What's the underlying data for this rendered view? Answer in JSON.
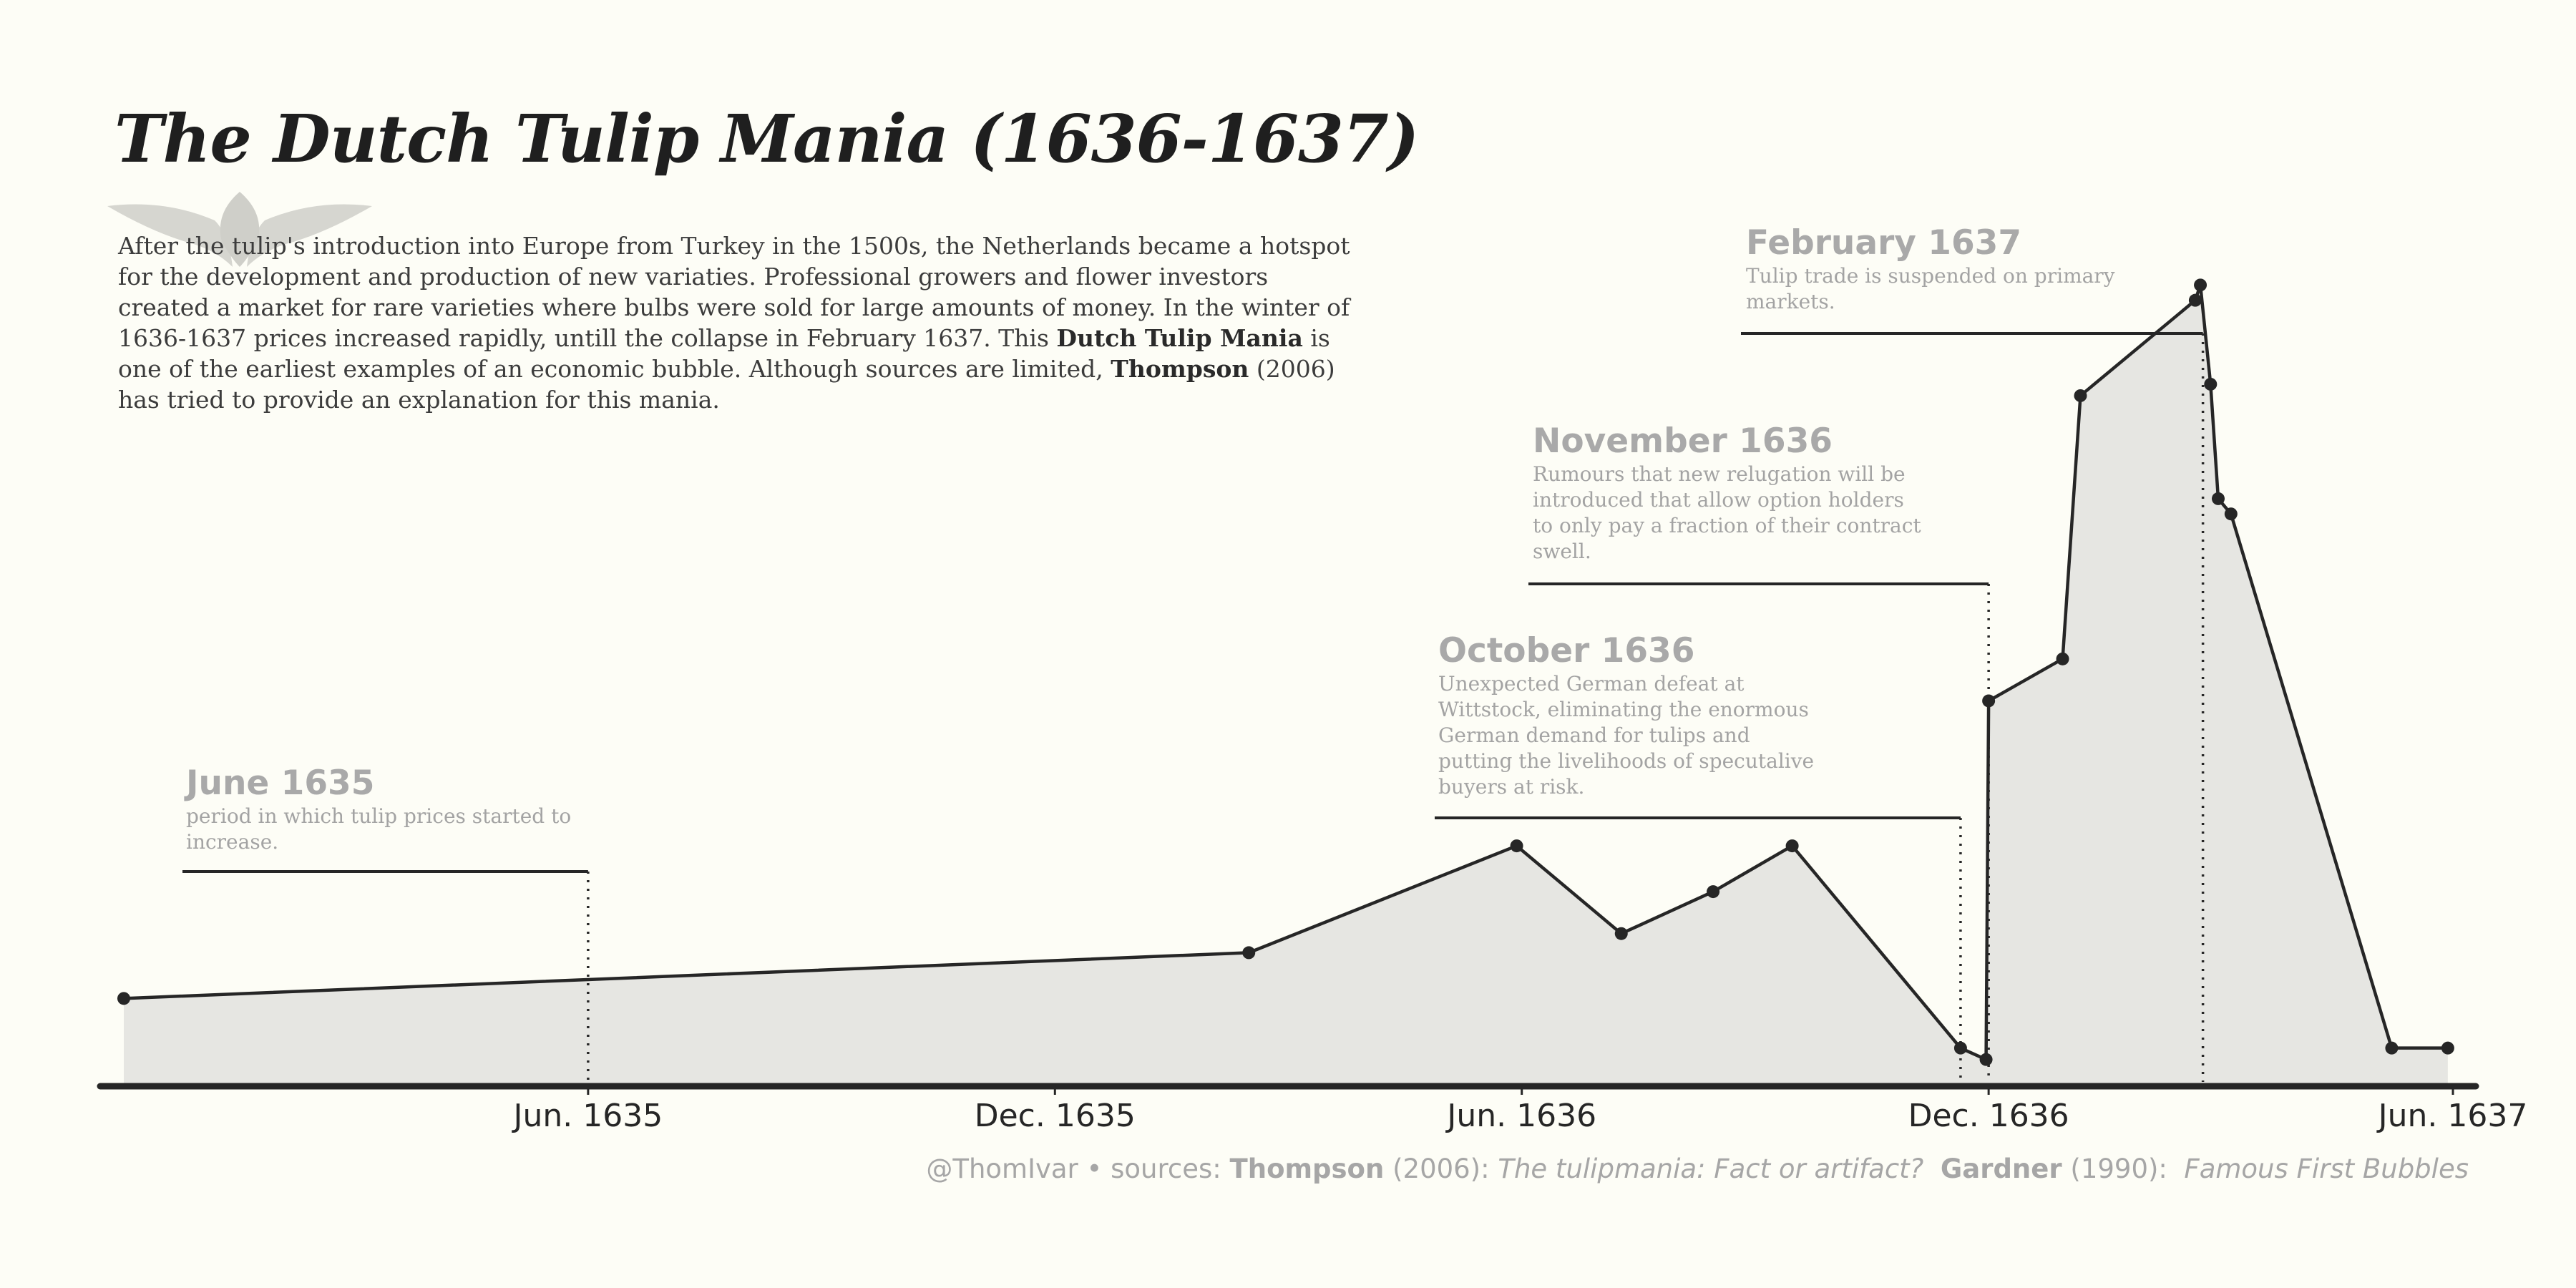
{
  "title": "The Dutch Tulip Mania (1636-1637)",
  "intro": {
    "p1": "After the tulip's introduction into Europe from Turkey in the 1500s, the Netherlands became a hotspot for the development and production of new variaties. Professional growers and flower investors created a market for rare varieties where bulbs were sold for large amounts of money. In the winter of 1636-1637 prices increased rapidly, untill the collapse in February 1637. This ",
    "b1": "Dutch Tulip Mania",
    "p2": " is one of the earliest examples of an economic bubble. Although sources are limited, ",
    "b2": "Thompson",
    "p3": " (2006) has tried to provide an explanation for this mania."
  },
  "footer": {
    "handle": "@ThomIvar • sources: ",
    "src1_author": "Thompson",
    "src1_year": " (2006): ",
    "src1_title": "The tulipmania: Fact or artifact?",
    "src2_author": "Gardner",
    "src2_year": " (1990): ",
    "src2_title": "Famous First Bubbles"
  },
  "colors": {
    "background": "#fdfdf6",
    "line": "#262626",
    "area": "#e6e6e2",
    "annotation": "#a9a9a9"
  },
  "chart_data": {
    "type": "area",
    "x_axis": {
      "type": "date",
      "range": [
        "1634-12-01",
        "1637-06-01"
      ],
      "ticks": [
        {
          "date": "1635-06-01",
          "label": "Jun. 1635"
        },
        {
          "date": "1635-12-01",
          "label": "Dec. 1635"
        },
        {
          "date": "1636-06-01",
          "label": "Jun. 1636"
        },
        {
          "date": "1636-12-01",
          "label": "Dec. 1636"
        },
        {
          "date": "1637-06-01",
          "label": "Jun. 1637"
        }
      ]
    },
    "y_axis": {
      "range": [
        0,
        220
      ],
      "visible": false
    },
    "grid": false,
    "series": [
      {
        "markers": true,
        "points": [
          {
            "x": "1634-12-01",
            "y": 23
          },
          {
            "x": "1636-02-15",
            "y": 35
          },
          {
            "x": "1636-05-30",
            "y": 63
          },
          {
            "x": "1636-07-10",
            "y": 40
          },
          {
            "x": "1636-08-15",
            "y": 51
          },
          {
            "x": "1636-09-15",
            "y": 63
          },
          {
            "x": "1636-11-20",
            "y": 10
          },
          {
            "x": "1636-11-30",
            "y": 7
          },
          {
            "x": "1636-12-01",
            "y": 101
          },
          {
            "x": "1636-12-30",
            "y": 112
          },
          {
            "x": "1637-01-06",
            "y": 181
          },
          {
            "x": "1637-02-20",
            "y": 206
          },
          {
            "x": "1637-02-22",
            "y": 210
          },
          {
            "x": "1637-02-26",
            "y": 184
          },
          {
            "x": "1637-03-01",
            "y": 154
          },
          {
            "x": "1637-03-06",
            "y": 150
          },
          {
            "x": "1637-05-08",
            "y": 10
          },
          {
            "x": "1637-05-30",
            "y": 10
          }
        ]
      }
    ],
    "annotations": [
      {
        "title": "June 1635",
        "text_lines": [
          "period in which tulip prices started to",
          "increase."
        ],
        "date": "1635-06-01"
      },
      {
        "title": "October 1636",
        "text_lines": [
          "Unexpected German defeat at",
          "Wittstock, eliminating the enormous",
          "German demand for tulips and",
          "putting the livelihoods of specutalive",
          "buyers at risk."
        ],
        "date": "1636-11-20"
      },
      {
        "title": "November 1636",
        "text_lines": [
          "Rumours that new relugation will be",
          "introduced that allow option holders",
          "to only pay a fraction of their contract",
          "swell."
        ],
        "date": "1636-12-01"
      },
      {
        "title": "February 1637",
        "text_lines": [
          "Tulip trade is suspended on primary",
          "markets."
        ],
        "date": "1637-02-23"
      }
    ]
  }
}
